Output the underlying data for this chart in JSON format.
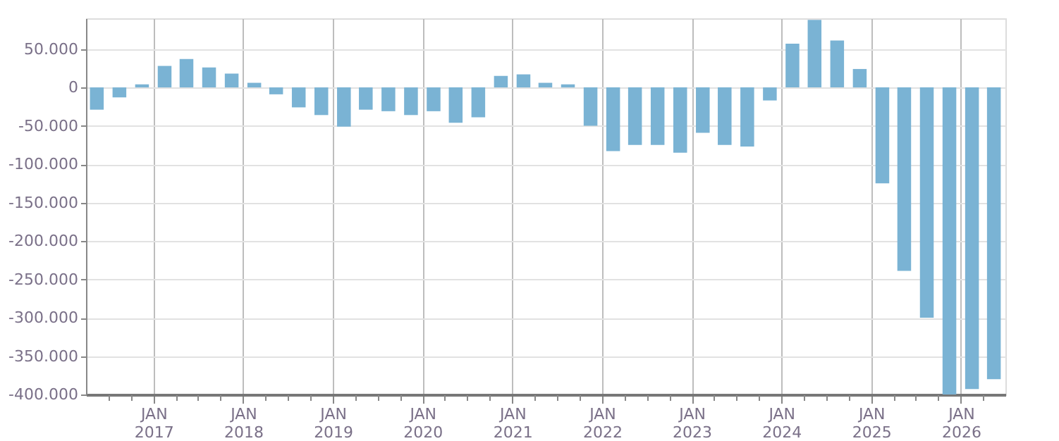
{
  "chart_data": {
    "type": "bar",
    "x": [
      "2016-05-15",
      "2016-08-15",
      "2016-11-15",
      "2017-02-15",
      "2017-05-15",
      "2017-08-15",
      "2017-11-15",
      "2018-02-15",
      "2018-05-15",
      "2018-08-15",
      "2018-11-15",
      "2019-02-15",
      "2019-05-15",
      "2019-08-15",
      "2019-11-15",
      "2020-02-15",
      "2020-05-15",
      "2020-08-15",
      "2020-11-15",
      "2021-02-15",
      "2021-05-15",
      "2021-08-15",
      "2021-11-15",
      "2022-02-15",
      "2022-05-15",
      "2022-08-15",
      "2022-11-15",
      "2023-02-15",
      "2023-05-15",
      "2023-08-15",
      "2023-11-15",
      "2024-02-15",
      "2024-05-15",
      "2024-08-15",
      "2024-11-15",
      "2025-02-15",
      "2025-05-15",
      "2025-08-15",
      "2025-11-15",
      "2026-02-15",
      "2026-05-15"
    ],
    "values": [
      -29000,
      -13000,
      4000,
      28000,
      37000,
      26000,
      18000,
      6000,
      -9000,
      -26000,
      -36000,
      -51000,
      -29000,
      -31000,
      -36000,
      -31000,
      -46000,
      -39000,
      15000,
      17000,
      6000,
      4000,
      -50000,
      -83000,
      -75000,
      -75000,
      -85000,
      -59000,
      -75000,
      -77000,
      -17000,
      57000,
      88000,
      61000,
      24000,
      -125000,
      -239000,
      -300000,
      -400000,
      -393000,
      -380000
    ],
    "color": "#7ab3d4",
    "xlim": [
      "2016-04",
      "2026-07"
    ],
    "xticks": [
      {
        "value": "2016-07",
        "label": null
      },
      {
        "value": "2016-10",
        "label": null
      },
      {
        "value": "2017-01",
        "label": "JAN 2017"
      },
      {
        "value": "2017-04",
        "label": null
      },
      {
        "value": "2017-07",
        "label": null
      },
      {
        "value": "2017-10",
        "label": null
      },
      {
        "value": "2018-01",
        "label": "JAN 2018"
      },
      {
        "value": "2018-04",
        "label": null
      },
      {
        "value": "2018-07",
        "label": null
      },
      {
        "value": "2018-10",
        "label": null
      },
      {
        "value": "2019-01",
        "label": "JAN 2019"
      },
      {
        "value": "2019-04",
        "label": null
      },
      {
        "value": "2019-07",
        "label": null
      },
      {
        "value": "2019-10",
        "label": null
      },
      {
        "value": "2020-01",
        "label": "JAN 2020"
      },
      {
        "value": "2020-04",
        "label": null
      },
      {
        "value": "2020-07",
        "label": null
      },
      {
        "value": "2020-10",
        "label": null
      },
      {
        "value": "2021-01",
        "label": "JAN 2021"
      },
      {
        "value": "2021-04",
        "label": null
      },
      {
        "value": "2021-07",
        "label": null
      },
      {
        "value": "2021-10",
        "label": null
      },
      {
        "value": "2022-01",
        "label": "JAN 2022"
      },
      {
        "value": "2022-04",
        "label": null
      },
      {
        "value": "2022-07",
        "label": null
      },
      {
        "value": "2022-10",
        "label": null
      },
      {
        "value": "2023-01",
        "label": "JAN 2023"
      },
      {
        "value": "2023-04",
        "label": null
      },
      {
        "value": "2023-07",
        "label": null
      },
      {
        "value": "2023-10",
        "label": null
      },
      {
        "value": "2024-01",
        "label": "JAN 2024"
      },
      {
        "value": "2024-04",
        "label": null
      },
      {
        "value": "2024-07",
        "label": null
      },
      {
        "value": "2024-10",
        "label": null
      },
      {
        "value": "2025-01",
        "label": "JAN 2025"
      },
      {
        "value": "2025-04",
        "label": null
      },
      {
        "value": "2025-07",
        "label": null
      },
      {
        "value": "2025-10",
        "label": null
      },
      {
        "value": "2026-01",
        "label": "JAN 2026"
      },
      {
        "value": "2026-04",
        "label": null
      }
    ],
    "ylim": [
      -400000,
      90000
    ],
    "yticks": [
      {
        "value": -400000,
        "label": "-400.000"
      },
      {
        "value": -350000,
        "label": "-350.000"
      },
      {
        "value": -300000,
        "label": "-300.000"
      },
      {
        "value": -250000,
        "label": "-250.000"
      },
      {
        "value": -200000,
        "label": "-200.000"
      },
      {
        "value": -150000,
        "label": "-150.000"
      },
      {
        "value": -100000,
        "label": "-100.000"
      },
      {
        "value": -50000,
        "label": "-50.000"
      },
      {
        "value": 0,
        "label": "0"
      },
      {
        "value": 50000,
        "label": "50.000"
      }
    ],
    "grid": true
  }
}
